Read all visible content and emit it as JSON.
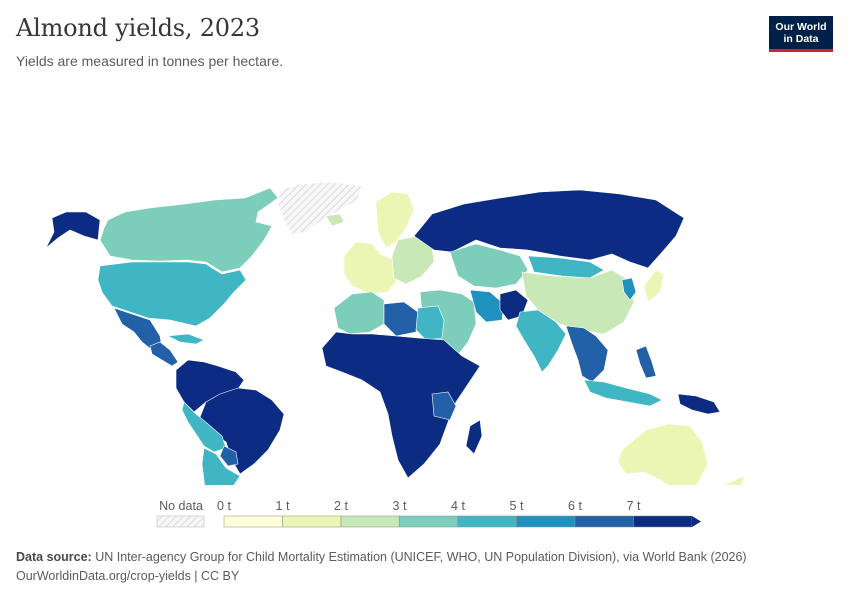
{
  "header": {
    "title": "Almond yields, 2023",
    "subtitle": "Yields are measured in tonnes per hectare.",
    "logo_line1": "Our World",
    "logo_line2": "in Data"
  },
  "legend": {
    "no_data_label": "No data",
    "ticks": [
      "0 t",
      "1 t",
      "2 t",
      "3 t",
      "4 t",
      "5 t",
      "6 t",
      "7 t"
    ],
    "colors": [
      "#fefed8",
      "#ecf6b4",
      "#c8e8b8",
      "#7dcdbb",
      "#40b6c4",
      "#1f91bf",
      "#2260a8",
      "#0c2c84"
    ],
    "no_data_color": "#e9e9e9"
  },
  "map": {
    "regions": [
      {
        "name": "Greenland",
        "value": null
      },
      {
        "name": "Canada",
        "value": 3.1
      },
      {
        "name": "Alaska",
        "value": 7.2
      },
      {
        "name": "United States",
        "value": 4.3
      },
      {
        "name": "Mexico",
        "value": 6.2
      },
      {
        "name": "Central America",
        "value": 6.5
      },
      {
        "name": "Cuba",
        "value": 4.6
      },
      {
        "name": "Northern South America",
        "value": 7.4
      },
      {
        "name": "Brazil",
        "value": 7.4
      },
      {
        "name": "Peru and Bolivia",
        "value": 4.4
      },
      {
        "name": "Paraguay",
        "value": 6.1
      },
      {
        "name": "Argentina and Chile",
        "value": 4.2
      },
      {
        "name": "Iceland",
        "value": 2.2
      },
      {
        "name": "Scandinavia",
        "value": 1.8
      },
      {
        "name": "Western Europe",
        "value": 1.2
      },
      {
        "name": "Eastern Europe",
        "value": 2.6
      },
      {
        "name": "Russia",
        "value": 7.5
      },
      {
        "name": "Central Asia",
        "value": 3.3
      },
      {
        "name": "Mongolia",
        "value": 4.4
      },
      {
        "name": "China",
        "value": 2.3
      },
      {
        "name": "Korea",
        "value": 5.3
      },
      {
        "name": "Japan",
        "value": 1.6
      },
      {
        "name": "Middle East",
        "value": 3.4
      },
      {
        "name": "Iran",
        "value": 5.1
      },
      {
        "name": "Afghanistan",
        "value": 7.3
      },
      {
        "name": "India",
        "value": 4.4
      },
      {
        "name": "Southeast Asia",
        "value": 6.2
      },
      {
        "name": "Indonesia",
        "value": 4.6
      },
      {
        "name": "New Guinea",
        "value": 7.1
      },
      {
        "name": "Philippines",
        "value": 6.3
      },
      {
        "name": "North Africa",
        "value": 3.1
      },
      {
        "name": "Libya",
        "value": 6.1
      },
      {
        "name": "Egypt",
        "value": 4.0
      },
      {
        "name": "Sub-Saharan Africa",
        "value": 7.4
      },
      {
        "name": "Tanzania",
        "value": 6.1
      },
      {
        "name": "Madagascar",
        "value": 7.3
      },
      {
        "name": "Australia",
        "value": 1.3
      },
      {
        "name": "New Zealand",
        "value": 1.6
      }
    ]
  },
  "footer": {
    "source_label": "Data source:",
    "source_text": "UN Inter-agency Group for Child Mortality Estimation (UNICEF, WHO, UN Population Division), via World Bank (2026)",
    "url_text": "OurWorldinData.org/crop-yields | CC BY"
  }
}
